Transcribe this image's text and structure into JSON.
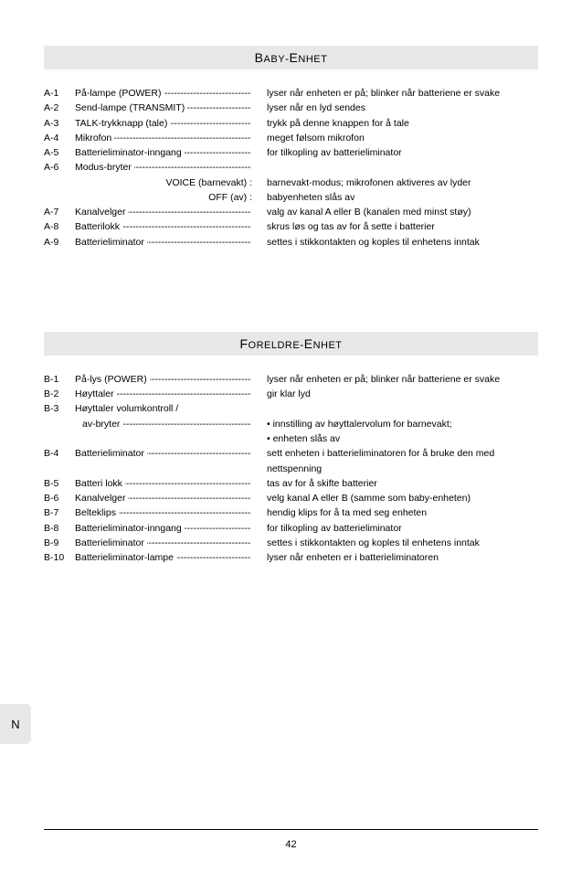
{
  "page_number": "42",
  "side_tab": "N",
  "colors": {
    "header_bg": "#e8e8e8",
    "text": "#000000",
    "page_bg": "#ffffff"
  },
  "sections": [
    {
      "title": "BABY-ENHET",
      "rows": [
        {
          "code": "A-1",
          "label": "På-lampe (POWER)",
          "desc": "lyser når enheten er på; blinker når batteriene er svake"
        },
        {
          "code": "A-2",
          "label": "Send-lampe (TRANSMIT)",
          "desc": "lyser når en lyd sendes"
        },
        {
          "code": "A-3",
          "label": "TALK-trykknapp (tale)",
          "desc": "trykk på denne knappen for å tale"
        },
        {
          "code": "A-4",
          "label": "Mikrofon",
          "desc": "meget følsom mikrofon"
        },
        {
          "code": "A-5",
          "label": "Batterieliminator-inngang",
          "desc": "for tilkopling av batterieliminator"
        },
        {
          "code": "A-6",
          "label": "Modus-bryter",
          "desc": ""
        },
        {
          "code": "",
          "label_right": "VOICE (barnevakt) :",
          "desc": "barnevakt-modus; mikrofonen aktiveres av lyder"
        },
        {
          "code": "",
          "label_right": "OFF (av) :",
          "desc": "babyenheten slås av"
        },
        {
          "code": "A-7",
          "label": "Kanalvelger",
          "desc": "valg av kanal A eller B (kanalen med minst støy)"
        },
        {
          "code": "A-8",
          "label": "Batterilokk",
          "desc": "skrus løs og tas av for å sette i batterier"
        },
        {
          "code": "A-9",
          "label": "Batterieliminator",
          "desc": "settes i stikkontakten og koples til enhetens inntak"
        }
      ]
    },
    {
      "title": "FORELDRE-ENHET",
      "rows": [
        {
          "code": "B-1",
          "label": "På-lys (POWER)",
          "desc": "lyser når enheten er på; blinker når batteriene er svake"
        },
        {
          "code": "B-2",
          "label": "Høyttaler",
          "desc": "gir klar lyd"
        },
        {
          "code": "B-3",
          "label": "Høyttaler volumkontroll /",
          "desc": "",
          "nodash": true
        },
        {
          "code": "",
          "label": "av-bryter",
          "sub": true,
          "desc": "• innstilling av høyttalervolum for barnevakt;"
        },
        {
          "code": "",
          "label": "",
          "nodash": true,
          "desc": "• enheten slås av"
        },
        {
          "code": "B-4",
          "label": "Batterieliminator",
          "desc": "sett enheten i batterieliminatoren for å bruke den med nettspenning"
        },
        {
          "code": "B-5",
          "label": "Batteri lokk",
          "desc": "tas av for å skifte batterier"
        },
        {
          "code": "B-6",
          "label": "Kanalvelger",
          "desc": "velg kanal A eller B (samme som baby-enheten)"
        },
        {
          "code": "B-7",
          "label": "Belteklips",
          "desc": "hendig klips for å ta med seg enheten"
        },
        {
          "code": "B-8",
          "label": "Batterieliminator-inngang",
          "desc": "for tilkopling av batterieliminator"
        },
        {
          "code": "B-9",
          "label": "Batterieliminator",
          "desc": "settes i stikkontakten og koples til enhetens inntak"
        },
        {
          "code": "B-10",
          "label": "Batterieliminator-lampe",
          "desc": "lyser når enheten er i batterieliminatoren"
        }
      ]
    }
  ]
}
